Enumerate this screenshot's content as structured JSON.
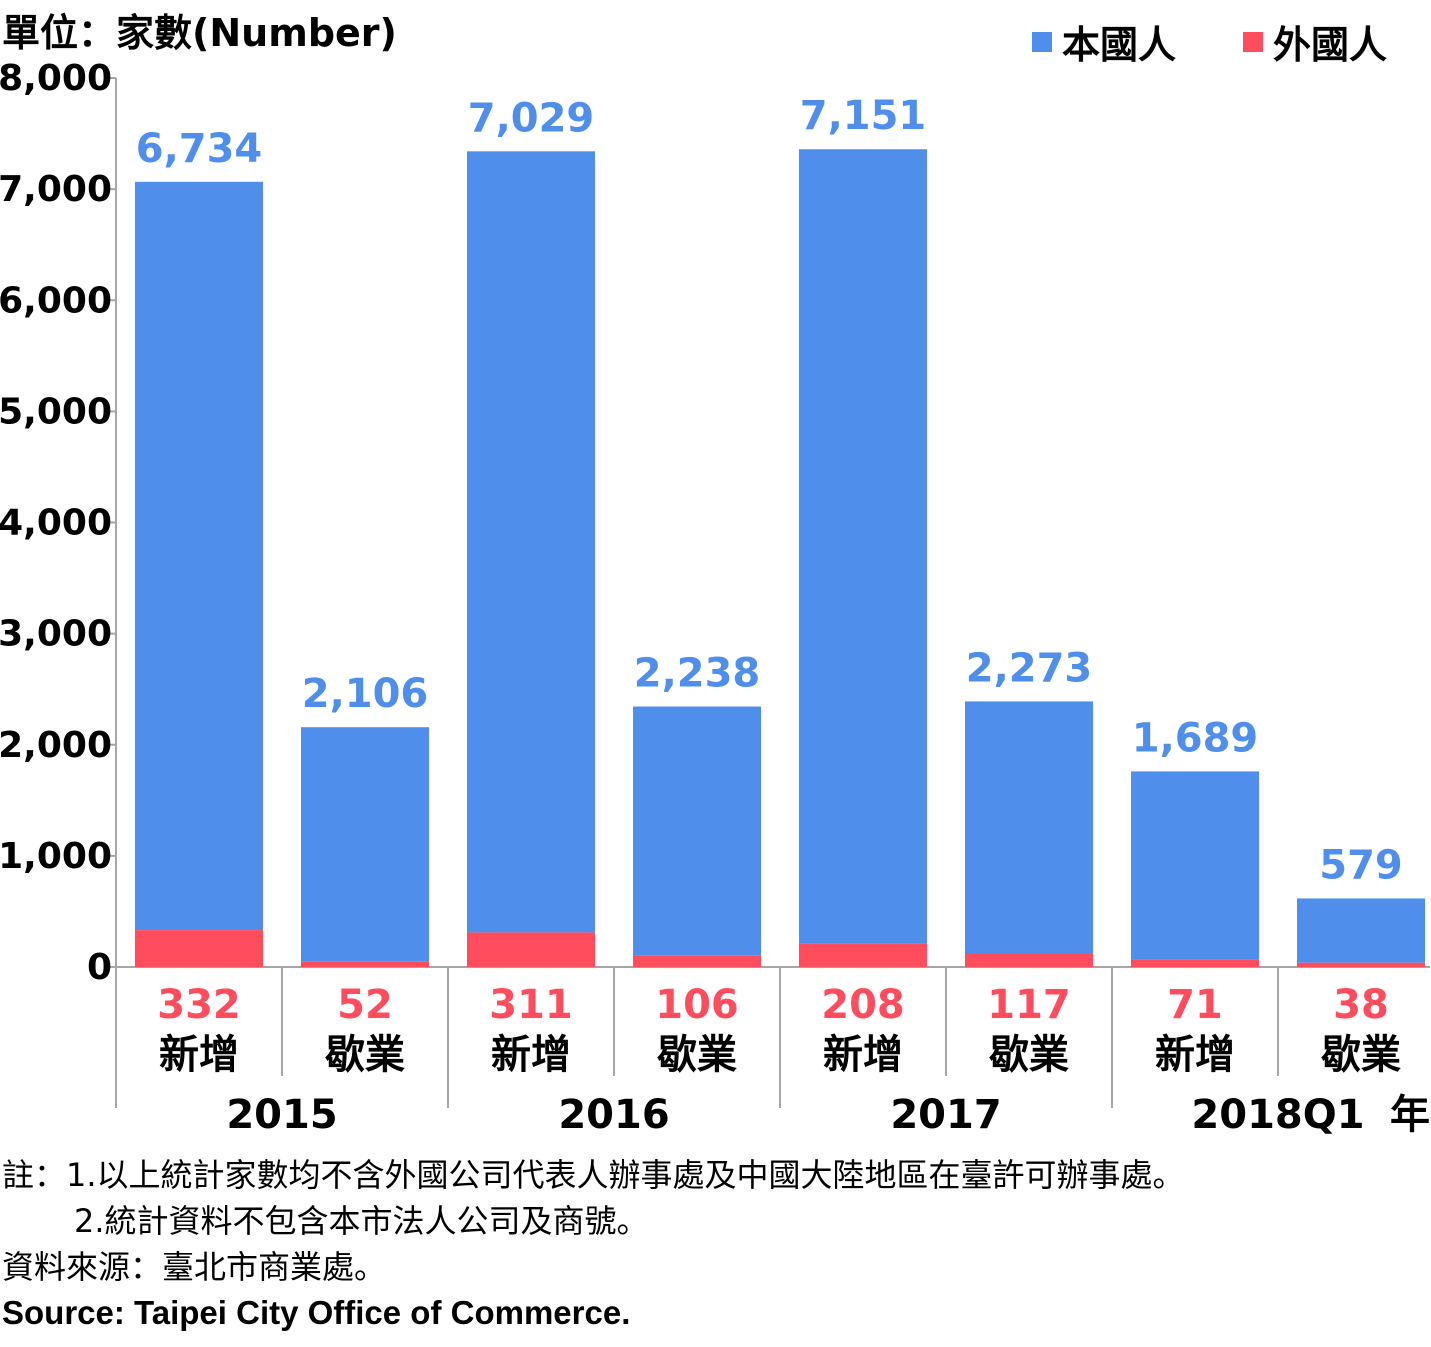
{
  "unit_label": "單位：家數(Number)",
  "legend": {
    "items": [
      {
        "label": "本國人",
        "color": "#4F8FEB"
      },
      {
        "label": "外國人",
        "color": "#FF4D5E"
      }
    ]
  },
  "chart_data": {
    "type": "bar",
    "stacked": true,
    "ylim": [
      0,
      8000
    ],
    "yticks": [
      "0",
      "1,000",
      "2,000",
      "3,000",
      "4,000",
      "5,000",
      "6,000",
      "7,000",
      "8,000"
    ],
    "ytick_values": [
      0,
      1000,
      2000,
      3000,
      4000,
      5000,
      6000,
      7000,
      8000
    ],
    "categories": [
      "新增",
      "歇業",
      "新增",
      "歇業",
      "新增",
      "歇業",
      "新增",
      "歇業"
    ],
    "groups": [
      "2015",
      "2016",
      "2017",
      "2018Q1"
    ],
    "group_axis_suffix": "年",
    "series": [
      {
        "name": "外國人",
        "color": "#FF4D5E",
        "values": [
          332,
          52,
          311,
          106,
          208,
          117,
          71,
          38
        ],
        "labels": [
          "332",
          "52",
          "311",
          "106",
          "208",
          "117",
          "71",
          "38"
        ]
      },
      {
        "name": "本國人",
        "color": "#4F8FEB",
        "values": [
          6734,
          2106,
          7029,
          2238,
          7151,
          2273,
          1689,
          579
        ],
        "labels": [
          "6,734",
          "2,106",
          "7,029",
          "2,238",
          "7,151",
          "2,273",
          "1,689",
          "579"
        ]
      }
    ]
  },
  "notes": {
    "line1": "註：1.以上統計家數均不含外國公司代表人辦事處及中國大陸地區在臺許可辦事處。",
    "line2": "2.統計資料不包含本市法人公司及商號。",
    "source_zh": "資料來源：臺北市商業處。",
    "source_en": "Source: Taipei City Office of Commerce."
  }
}
